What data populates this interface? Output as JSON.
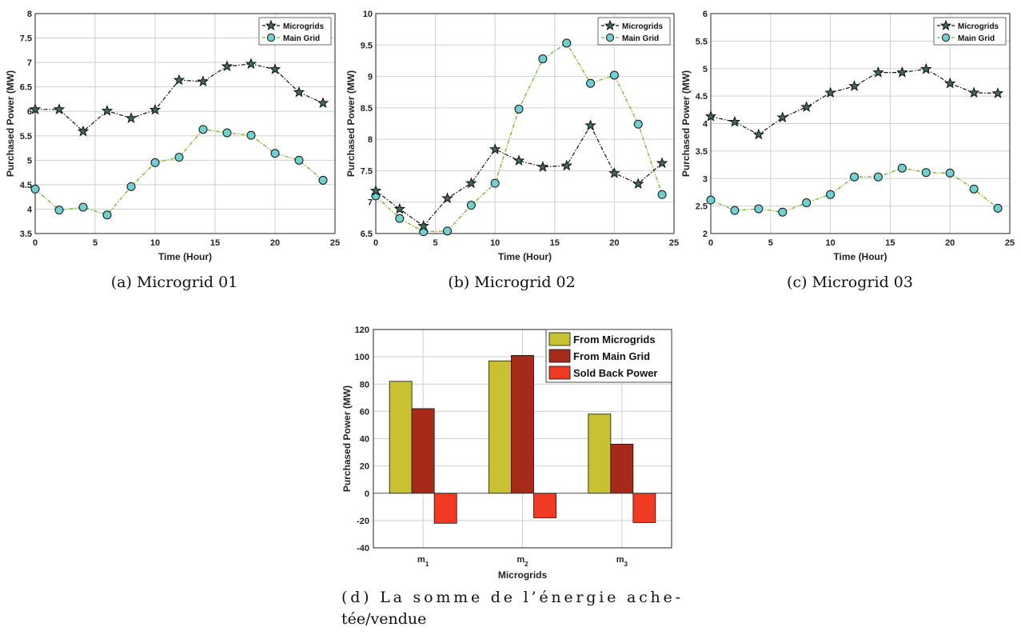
{
  "chart_data": [
    {
      "type": "line",
      "caption": "(a) Microgrid 01",
      "xlabel": "Time (Hour)",
      "ylabel": "Purchased Power (MW)",
      "xlim": [
        0,
        25
      ],
      "ylim": [
        3.5,
        8
      ],
      "xticks": [
        0,
        5,
        10,
        15,
        20,
        25
      ],
      "yticks": [
        3.5,
        4,
        4.5,
        5,
        5.5,
        6,
        6.5,
        7,
        7.5,
        8
      ],
      "grid": true,
      "legend": "top-right",
      "x": [
        0,
        2,
        4,
        6,
        8,
        10,
        12,
        14,
        16,
        18,
        20,
        22,
        24
      ],
      "series": [
        {
          "name": "Microgrids",
          "values": [
            6.04,
            6.04,
            5.59,
            6.01,
            5.86,
            6.03,
            6.64,
            6.61,
            6.92,
            6.97,
            6.86,
            6.39,
            6.17
          ]
        },
        {
          "name": "Main Grid",
          "values": [
            4.41,
            3.98,
            4.04,
            3.88,
            4.46,
            4.95,
            5.06,
            5.63,
            5.56,
            5.51,
            5.14,
            5.0,
            4.59
          ]
        }
      ]
    },
    {
      "type": "line",
      "caption": "(b) Microgrid 02",
      "xlabel": "Time (Hour)",
      "ylabel": "Purchased Power (MW)",
      "xlim": [
        0,
        25
      ],
      "ylim": [
        6.5,
        10
      ],
      "xticks": [
        0,
        5,
        10,
        15,
        20,
        25
      ],
      "yticks": [
        6.5,
        7,
        7.5,
        8,
        8.5,
        9,
        9.5,
        10
      ],
      "grid": true,
      "legend": "top-right",
      "x": [
        0,
        2,
        4,
        6,
        8,
        10,
        12,
        14,
        16,
        18,
        20,
        22,
        24
      ],
      "series": [
        {
          "name": "Microgrids",
          "values": [
            7.18,
            6.89,
            6.62,
            7.06,
            7.3,
            7.84,
            7.66,
            7.56,
            7.58,
            8.22,
            7.46,
            7.29,
            7.62
          ]
        },
        {
          "name": "Main Grid",
          "values": [
            7.1,
            6.74,
            6.53,
            6.54,
            6.95,
            7.3,
            8.48,
            9.28,
            9.53,
            8.89,
            9.02,
            8.24,
            7.12
          ]
        }
      ]
    },
    {
      "type": "line",
      "caption": "(c) Microgrid 03",
      "xlabel": "Time (Hour)",
      "ylabel": "Purchased Power (MW)",
      "xlim": [
        0,
        25
      ],
      "ylim": [
        2,
        6
      ],
      "xticks": [
        0,
        5,
        10,
        15,
        20,
        25
      ],
      "yticks": [
        2,
        2.5,
        3,
        3.5,
        4,
        4.5,
        5,
        5.5,
        6
      ],
      "grid": true,
      "legend": "top-right",
      "x": [
        0,
        2,
        4,
        6,
        8,
        10,
        12,
        14,
        16,
        18,
        20,
        22,
        24
      ],
      "series": [
        {
          "name": "Microgrids",
          "values": [
            4.13,
            4.03,
            3.8,
            4.11,
            4.3,
            4.56,
            4.68,
            4.93,
            4.93,
            4.99,
            4.73,
            4.56,
            4.55
          ]
        },
        {
          "name": "Main Grid",
          "values": [
            2.61,
            2.42,
            2.45,
            2.39,
            2.56,
            2.71,
            3.03,
            3.03,
            3.19,
            3.11,
            3.1,
            2.81,
            2.46
          ]
        }
      ]
    },
    {
      "type": "bar",
      "caption_lines": [
        "(d)  La  somme  de  l’énergie  ache-",
        "tée/vendue"
      ],
      "xlabel": "Microgrids",
      "ylabel": "Purchased Power (MW)",
      "ylim": [
        -40,
        120
      ],
      "yticks": [
        -40,
        -20,
        0,
        20,
        40,
        60,
        80,
        100,
        120
      ],
      "grid": true,
      "legend": "top-right",
      "categories": [
        "m1",
        "m2",
        "m3"
      ],
      "category_labels": [
        {
          "base": "m",
          "sub": "1"
        },
        {
          "base": "m",
          "sub": "2"
        },
        {
          "base": "m",
          "sub": "3"
        }
      ],
      "series": [
        {
          "name": "From Microgrids",
          "values": [
            82,
            97,
            58
          ]
        },
        {
          "name": "From Main Grid",
          "values": [
            62,
            101,
            36
          ]
        },
        {
          "name": "Sold Back Power",
          "values": [
            -22,
            -18,
            -21.5
          ]
        }
      ]
    }
  ],
  "colors": {
    "microgrids_line": "#111111",
    "main_grid_line": "#7dbb2e",
    "main_grid_marker": "#6fd0cf",
    "bar_from_microgrids": "#c8c232",
    "bar_from_main_grid": "#a52a1a",
    "bar_sold_back": "#f03a24",
    "grid": "#cfcfcf"
  }
}
